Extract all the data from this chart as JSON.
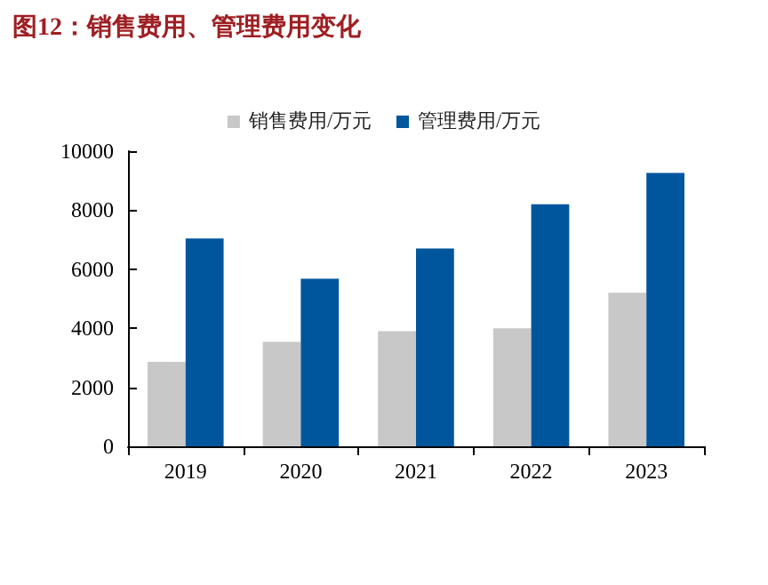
{
  "chart_data": {
    "type": "bar",
    "title": "图12：销售费用、管理费用变化",
    "categories": [
      "2019",
      "2020",
      "2021",
      "2022",
      "2023"
    ],
    "series": [
      {
        "name": "销售费用/万元",
        "color": "#c8c8c8",
        "values": [
          2860,
          3540,
          3900,
          4000,
          5200
        ]
      },
      {
        "name": "管理费用/万元",
        "color": "#00569c",
        "values": [
          7040,
          5680,
          6700,
          8200,
          9260
        ]
      }
    ],
    "ylim": [
      0,
      10000
    ],
    "yticks": [
      0,
      2000,
      4000,
      6000,
      8000,
      10000
    ],
    "grid": false,
    "legend": "top"
  }
}
